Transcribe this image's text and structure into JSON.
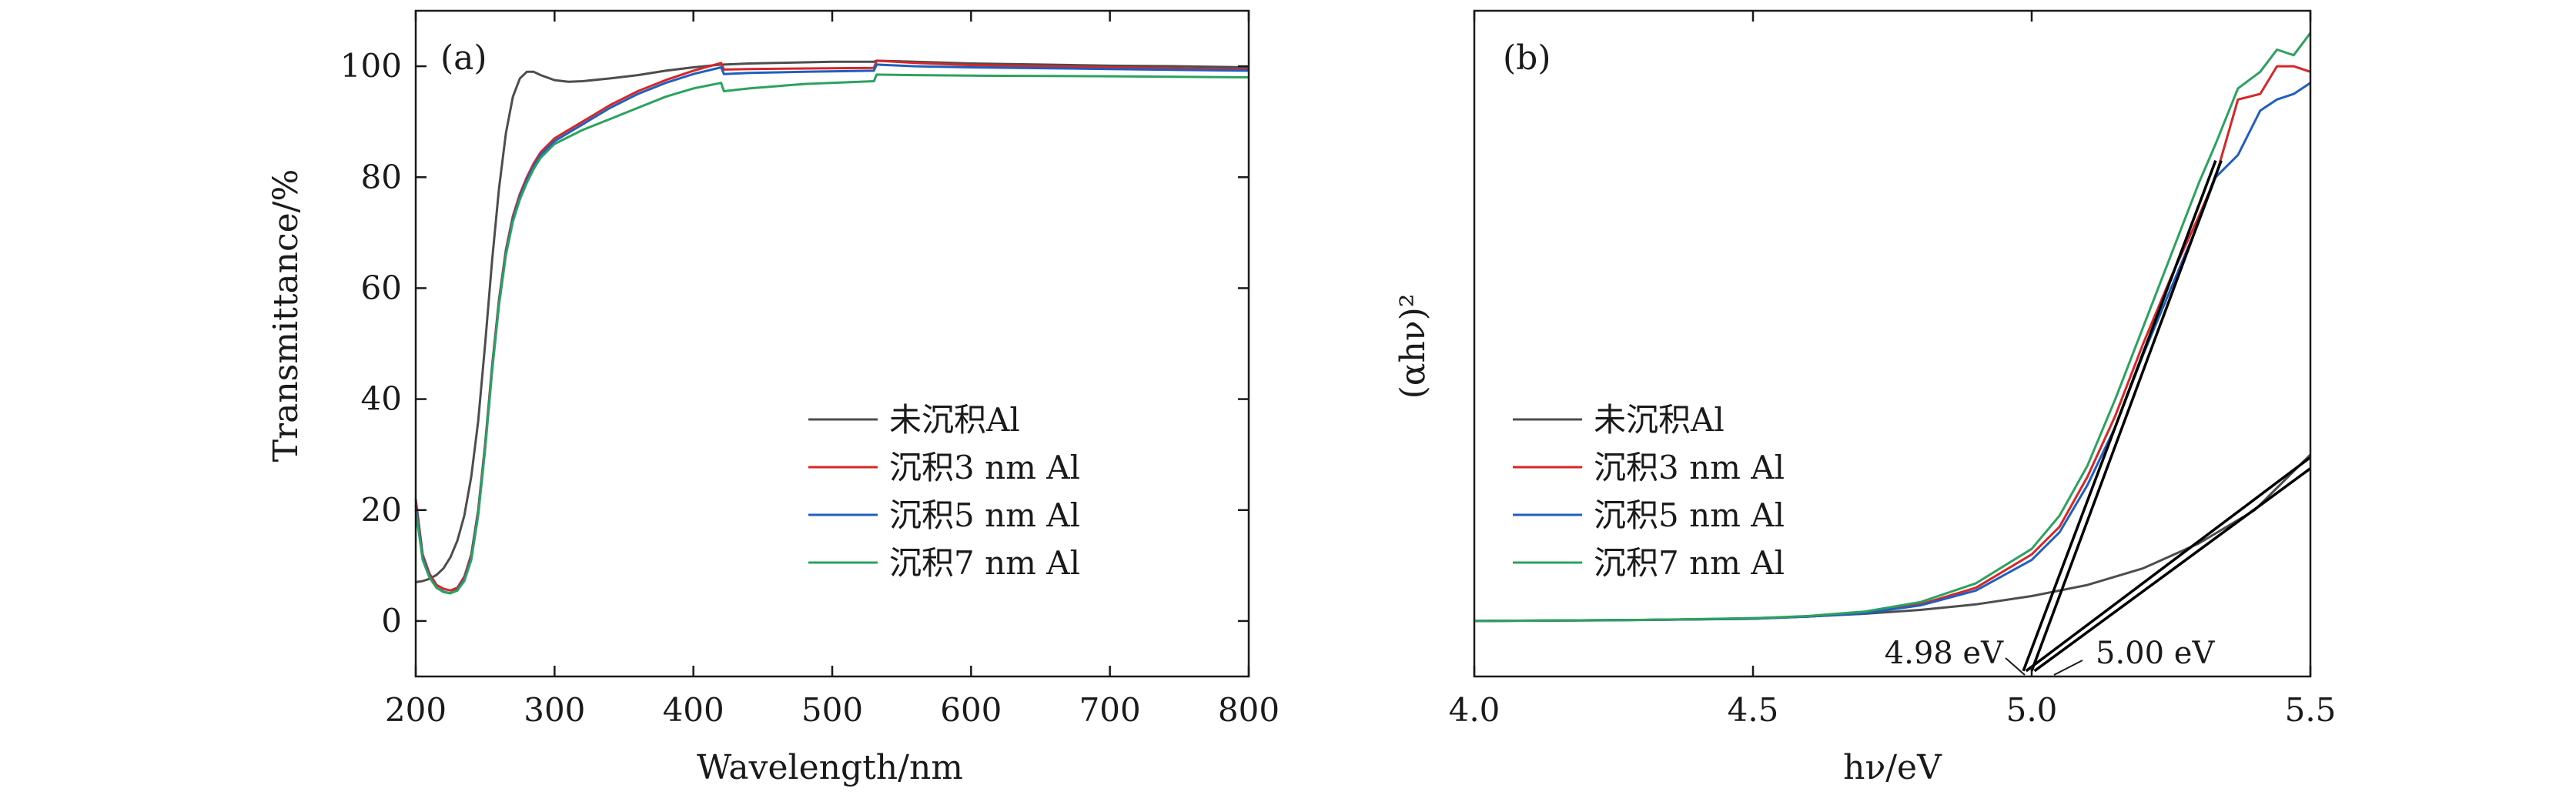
{
  "chart_data": [
    {
      "type": "line",
      "panel_label": "(a)",
      "xlabel": "Wavelength/nm",
      "ylabel": "Transmittance/%",
      "xlim": [
        200,
        800
      ],
      "ylim": [
        -10,
        110
      ],
      "xticks": [
        200,
        300,
        400,
        500,
        600,
        700,
        800
      ],
      "yticks": [
        0,
        20,
        40,
        60,
        80,
        100
      ],
      "legend_position": "lower-right",
      "grid": false,
      "series": [
        {
          "name": "未沉积Al",
          "color": "#4d4d4d",
          "x": [
            200,
            205,
            210,
            215,
            220,
            225,
            230,
            235,
            240,
            245,
            250,
            255,
            260,
            265,
            270,
            275,
            280,
            285,
            290,
            300,
            310,
            320,
            340,
            360,
            380,
            400,
            420,
            422,
            440,
            460,
            480,
            500,
            530,
            532,
            560,
            600,
            650,
            700,
            750,
            800
          ],
          "y": [
            7,
            7.2,
            7.6,
            8.3,
            9.5,
            11.5,
            14.5,
            19,
            26,
            36,
            50,
            65,
            78,
            88,
            94.5,
            97.8,
            99,
            99,
            98.4,
            97.5,
            97.2,
            97.3,
            97.8,
            98.4,
            99.2,
            99.8,
            100.3,
            100.3,
            100.5,
            100.6,
            100.7,
            100.8,
            100.8,
            101,
            100.8,
            100.5,
            100.3,
            100.1,
            100,
            99.8
          ]
        },
        {
          "name": "沉积3 nm Al",
          "color": "#d62728",
          "x": [
            200,
            205,
            210,
            215,
            220,
            225,
            230,
            235,
            240,
            245,
            250,
            255,
            260,
            265,
            270,
            275,
            280,
            285,
            290,
            300,
            320,
            340,
            360,
            380,
            400,
            420,
            422,
            440,
            480,
            530,
            532,
            560,
            600,
            700,
            800
          ],
          "y": [
            22,
            12,
            8.5,
            6.5,
            5.8,
            5.5,
            6,
            8,
            12,
            20,
            32,
            46,
            58,
            67,
            73,
            77,
            80,
            82.5,
            84.5,
            87,
            90,
            93,
            95.5,
            97.5,
            99.2,
            100.6,
            99.4,
            99.5,
            99.6,
            99.7,
            101,
            100.6,
            100.2,
            99.8,
            99.4
          ]
        },
        {
          "name": "沉积5 nm Al",
          "color": "#1f5fbf",
          "x": [
            200,
            205,
            210,
            215,
            220,
            225,
            230,
            235,
            240,
            245,
            250,
            255,
            260,
            265,
            270,
            275,
            280,
            285,
            290,
            300,
            320,
            340,
            360,
            380,
            400,
            420,
            422,
            440,
            480,
            530,
            532,
            560,
            600,
            700,
            800
          ],
          "y": [
            21,
            11.5,
            8,
            6,
            5.3,
            5,
            5.6,
            7.5,
            11.5,
            19.5,
            31.5,
            45.5,
            57.5,
            66.5,
            72.5,
            76.5,
            79.5,
            82,
            84,
            86.5,
            89.5,
            92.5,
            95,
            97,
            98.6,
            99.8,
            98.6,
            98.8,
            99,
            99.2,
            100.3,
            100,
            99.8,
            99.5,
            99.2
          ]
        },
        {
          "name": "沉积7 nm Al",
          "color": "#2ca25f",
          "x": [
            200,
            205,
            210,
            215,
            220,
            225,
            230,
            235,
            240,
            245,
            250,
            255,
            260,
            265,
            270,
            275,
            280,
            285,
            290,
            300,
            320,
            340,
            360,
            380,
            400,
            420,
            422,
            440,
            480,
            530,
            532,
            560,
            600,
            700,
            800
          ],
          "y": [
            20,
            11,
            7.8,
            6,
            5.2,
            5,
            5.5,
            7.2,
            11,
            19,
            31,
            45,
            57,
            66,
            72,
            76,
            79,
            81.5,
            83.5,
            86,
            88.5,
            90.5,
            92.5,
            94.5,
            96,
            97,
            95.5,
            96,
            96.8,
            97.3,
            98.5,
            98.4,
            98.3,
            98.2,
            98
          ]
        }
      ]
    },
    {
      "type": "line",
      "panel_label": "(b)",
      "xlabel": "hν/eV",
      "ylabel": "(αhν)²",
      "xlim": [
        4.0,
        5.5
      ],
      "ylim": [
        -0.1,
        1.1
      ],
      "xticks": [
        4.0,
        4.5,
        5.0,
        5.5
      ],
      "yticks": [],
      "legend_position": "left",
      "grid": false,
      "series": [
        {
          "name": "未沉积Al",
          "color": "#4d4d4d",
          "x": [
            4.0,
            4.2,
            4.4,
            4.5,
            4.6,
            4.7,
            4.8,
            4.9,
            5.0,
            5.1,
            5.2,
            5.3,
            5.4,
            5.5
          ],
          "y": [
            0,
            0.001,
            0.003,
            0.005,
            0.008,
            0.013,
            0.02,
            0.03,
            0.045,
            0.065,
            0.095,
            0.14,
            0.2,
            0.3
          ]
        },
        {
          "name": "沉积3 nm Al",
          "color": "#d62728",
          "x": [
            4.0,
            4.3,
            4.5,
            4.6,
            4.7,
            4.8,
            4.9,
            5.0,
            5.05,
            5.1,
            5.15,
            5.2,
            5.25,
            5.3,
            5.33,
            5.37,
            5.41,
            5.44,
            5.47,
            5.5
          ],
          "y": [
            0,
            0.002,
            0.004,
            0.008,
            0.015,
            0.03,
            0.06,
            0.12,
            0.17,
            0.26,
            0.37,
            0.5,
            0.62,
            0.73,
            0.8,
            0.94,
            0.95,
            1.0,
            1.0,
            0.99
          ]
        },
        {
          "name": "沉积5 nm Al",
          "color": "#1f5fbf",
          "x": [
            4.0,
            4.3,
            4.5,
            4.6,
            4.7,
            4.8,
            4.9,
            5.0,
            5.05,
            5.1,
            5.15,
            5.2,
            5.25,
            5.3,
            5.33,
            5.37,
            5.41,
            5.44,
            5.47,
            5.5
          ],
          "y": [
            0,
            0.002,
            0.004,
            0.008,
            0.014,
            0.028,
            0.055,
            0.11,
            0.16,
            0.245,
            0.35,
            0.48,
            0.6,
            0.72,
            0.8,
            0.84,
            0.92,
            0.94,
            0.95,
            0.97
          ]
        },
        {
          "name": "沉积7 nm Al",
          "color": "#2ca25f",
          "x": [
            4.0,
            4.3,
            4.5,
            4.6,
            4.7,
            4.8,
            4.9,
            5.0,
            5.05,
            5.1,
            5.15,
            5.2,
            5.25,
            5.3,
            5.33,
            5.37,
            5.41,
            5.44,
            5.47,
            5.5
          ],
          "y": [
            0,
            0.002,
            0.005,
            0.009,
            0.017,
            0.034,
            0.068,
            0.13,
            0.19,
            0.28,
            0.4,
            0.53,
            0.66,
            0.79,
            0.86,
            0.96,
            0.99,
            1.03,
            1.02,
            1.06
          ]
        }
      ],
      "fit_lines": [
        {
          "color": "#000000",
          "x": [
            4.985,
            5.33
          ],
          "y": [
            -0.09,
            0.83
          ]
        },
        {
          "color": "#000000",
          "x": [
            5.0,
            5.34
          ],
          "y": [
            -0.09,
            0.83
          ]
        },
        {
          "color": "#000000",
          "x": [
            4.99,
            5.5
          ],
          "y": [
            -0.09,
            0.295
          ]
        },
        {
          "color": "#000000",
          "x": [
            5.005,
            5.5
          ],
          "y": [
            -0.09,
            0.275
          ]
        }
      ],
      "annotations": [
        {
          "text": "4.98 eV",
          "x": 4.98,
          "y": -0.09
        },
        {
          "text": "5.00 eV",
          "x": 5.0,
          "y": -0.09
        }
      ]
    }
  ]
}
